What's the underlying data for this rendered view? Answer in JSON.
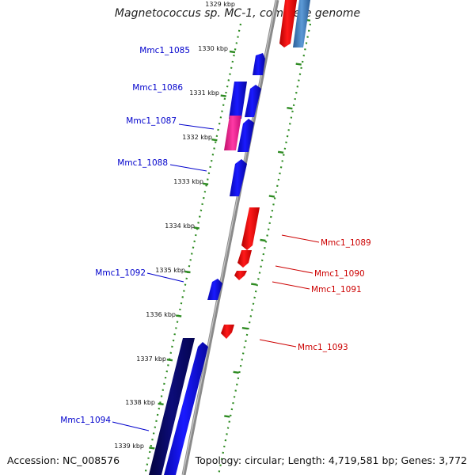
{
  "title": "Magnetococcus sp. MC-1, complete genome",
  "footer": {
    "accession": "Accession: NC_008576",
    "topology": "Topology: circular; Length: 4,719,581 bp; Genes: 3,772"
  },
  "colors": {
    "background": "#ffffff",
    "backbone": "#8a8a8a",
    "ruler_ticks": "#2e8b22",
    "forward_gene": "#1010ee",
    "forward_gene_dark": "#0a0a80",
    "forward_gene_highlight": "#ee2a9a",
    "reverse_gene": "#ee1010",
    "reverse_gene_alt": "#3a78b8",
    "forward_label": "#0000cc",
    "reverse_label": "#cc0000",
    "tick_label": "#111111"
  },
  "ruler": {
    "unit": "kbp",
    "tick_labels": [
      "1329 kbp",
      "1330 kbp",
      "1331 kbp",
      "1332 kbp",
      "1333 kbp",
      "1334 kbp",
      "1335 kbp",
      "1336 kbp",
      "1337 kbp",
      "1338 kbp",
      "1339 kbp"
    ]
  },
  "genes_forward_strand": [
    {
      "label": "Mmc1_1085"
    },
    {
      "label": "Mmc1_1086"
    },
    {
      "label": "Mmc1_1087"
    },
    {
      "label": "Mmc1_1088"
    },
    {
      "label": "Mmc1_1092"
    },
    {
      "label": "Mmc1_1094"
    }
  ],
  "genes_reverse_strand": [
    {
      "label": "Mmc1_1089"
    },
    {
      "label": "Mmc1_1090"
    },
    {
      "label": "Mmc1_1091"
    },
    {
      "label": "Mmc1_1093"
    }
  ]
}
